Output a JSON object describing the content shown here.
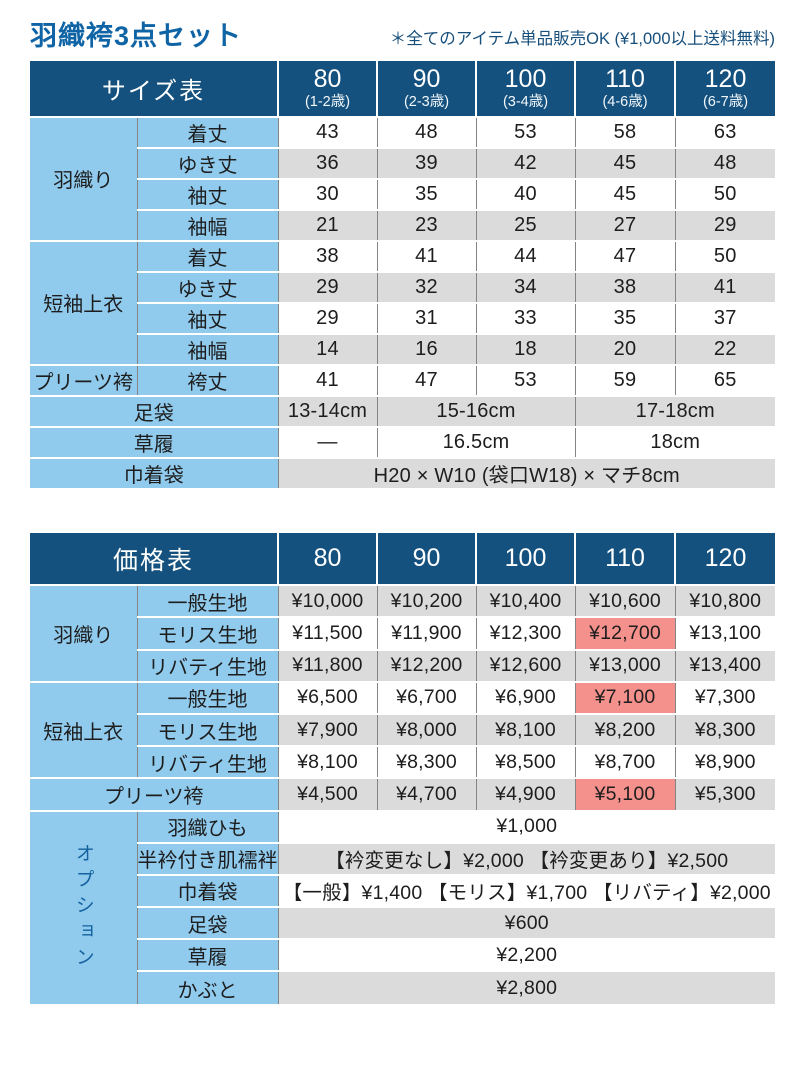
{
  "page": {
    "title": "羽織袴3点セット",
    "note": "＊全てのアイテム単品販売OK (¥1,000以上送料無料)"
  },
  "size_table": {
    "title": "サイズ表",
    "columns": [
      {
        "size": "80",
        "age": "(1-2歳)"
      },
      {
        "size": "90",
        "age": "(2-3歳)"
      },
      {
        "size": "100",
        "age": "(3-4歳)"
      },
      {
        "size": "110",
        "age": "(4-6歳)"
      },
      {
        "size": "120",
        "age": "(6-7歳)"
      }
    ],
    "groups": [
      {
        "name": "羽織り",
        "rows": [
          {
            "label": "着丈",
            "values": [
              "43",
              "48",
              "53",
              "58",
              "63"
            ]
          },
          {
            "label": "ゆき丈",
            "values": [
              "36",
              "39",
              "42",
              "45",
              "48"
            ]
          },
          {
            "label": "袖丈",
            "values": [
              "30",
              "35",
              "40",
              "45",
              "50"
            ]
          },
          {
            "label": "袖幅",
            "values": [
              "21",
              "23",
              "25",
              "27",
              "29"
            ]
          }
        ]
      },
      {
        "name": "短袖上衣",
        "rows": [
          {
            "label": "着丈",
            "values": [
              "38",
              "41",
              "44",
              "47",
              "50"
            ]
          },
          {
            "label": "ゆき丈",
            "values": [
              "29",
              "32",
              "34",
              "38",
              "41"
            ]
          },
          {
            "label": "袖丈",
            "values": [
              "29",
              "31",
              "33",
              "35",
              "37"
            ]
          },
          {
            "label": "袖幅",
            "values": [
              "14",
              "16",
              "18",
              "20",
              "22"
            ]
          }
        ]
      },
      {
        "name": "プリーツ袴",
        "rows": [
          {
            "label": "袴丈",
            "values": [
              "41",
              "47",
              "53",
              "59",
              "65"
            ]
          }
        ]
      }
    ],
    "footer_rows": [
      {
        "label": "足袋",
        "cells": [
          {
            "text": "13-14cm",
            "span": 1
          },
          {
            "text": "15-16cm",
            "span": 2
          },
          {
            "text": "17-18cm",
            "span": 2
          }
        ]
      },
      {
        "label": "草履",
        "cells": [
          {
            "text": "—",
            "span": 1
          },
          {
            "text": "16.5cm",
            "span": 2
          },
          {
            "text": "18cm",
            "span": 2
          }
        ]
      },
      {
        "label": "巾着袋",
        "cells": [
          {
            "text": "H20 × W10 (袋口W18) × マチ8cm",
            "span": 5
          }
        ]
      }
    ]
  },
  "price_table": {
    "title": "価格表",
    "columns": [
      "80",
      "90",
      "100",
      "110",
      "120"
    ],
    "groups": [
      {
        "name": "羽織り",
        "rows": [
          {
            "label": "一般生地",
            "values": [
              "¥10,000",
              "¥10,200",
              "¥10,400",
              "¥10,600",
              "¥10,800"
            ],
            "highlight": null
          },
          {
            "label": "モリス生地",
            "values": [
              "¥11,500",
              "¥11,900",
              "¥12,300",
              "¥12,700",
              "¥13,100"
            ],
            "highlight": 3
          },
          {
            "label": "リバティ生地",
            "values": [
              "¥11,800",
              "¥12,200",
              "¥12,600",
              "¥13,000",
              "¥13,400"
            ],
            "highlight": null
          }
        ]
      },
      {
        "name": "短袖上衣",
        "rows": [
          {
            "label": "一般生地",
            "values": [
              "¥6,500",
              "¥6,700",
              "¥6,900",
              "¥7,100",
              "¥7,300"
            ],
            "highlight": 3
          },
          {
            "label": "モリス生地",
            "values": [
              "¥7,900",
              "¥8,000",
              "¥8,100",
              "¥8,200",
              "¥8,300"
            ],
            "highlight": null
          },
          {
            "label": "リバティ生地",
            "values": [
              "¥8,100",
              "¥8,300",
              "¥8,500",
              "¥8,700",
              "¥8,900"
            ],
            "highlight": null
          }
        ]
      }
    ],
    "hakama_row": {
      "label": "プリーツ袴",
      "values": [
        "¥4,500",
        "¥4,700",
        "¥4,900",
        "¥5,100",
        "¥5,300"
      ],
      "highlight": 3
    },
    "options": {
      "name": "オプション",
      "rows": [
        {
          "label": "羽織ひも",
          "value": "¥1,000"
        },
        {
          "label": "半衿付き肌襦袢",
          "value": "【衿変更なし】¥2,000 【衿変更あり】¥2,500"
        },
        {
          "label": "巾着袋",
          "value": "【一般】¥1,400 【モリス】¥1,700 【リバティ】¥2,000"
        },
        {
          "label": "足袋",
          "value": "¥600"
        },
        {
          "label": "草履",
          "value": "¥2,200"
        },
        {
          "label": "かぶと",
          "value": "¥2,800"
        }
      ]
    }
  },
  "colors": {
    "header_navy": "#15517e",
    "cell_blue": "#90cbee",
    "row_gray": "#dbdbdb",
    "highlight_red": "#f4918c",
    "title_blue": "#0f64a6"
  }
}
